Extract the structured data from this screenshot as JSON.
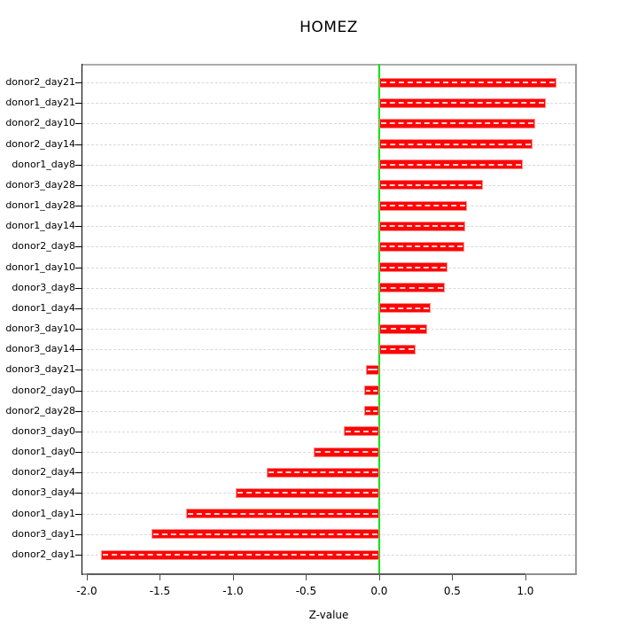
{
  "chart_data": {
    "type": "bar",
    "orientation": "horizontal",
    "title": "HOMEZ",
    "xlabel": "Z-value",
    "ylabel": "",
    "categories": [
      "donor2_day21",
      "donor1_day21",
      "donor2_day10",
      "donor2_day14",
      "donor1_day8",
      "donor3_day28",
      "donor1_day28",
      "donor1_day14",
      "donor2_day8",
      "donor1_day10",
      "donor3_day8",
      "donor1_day4",
      "donor3_day10",
      "donor3_day14",
      "donor3_day21",
      "donor2_day0",
      "donor2_day28",
      "donor3_day0",
      "donor1_day0",
      "donor2_day4",
      "donor3_day4",
      "donor1_day1",
      "donor3_day1",
      "donor2_day1"
    ],
    "values": [
      1.21,
      1.14,
      1.07,
      1.05,
      0.98,
      0.71,
      0.6,
      0.59,
      0.58,
      0.47,
      0.45,
      0.35,
      0.33,
      0.25,
      -0.09,
      -0.1,
      -0.1,
      -0.24,
      -0.45,
      -0.77,
      -0.98,
      -1.32,
      -1.56,
      -1.9
    ],
    "x_ticks": [
      -2.0,
      -1.5,
      -1.0,
      -0.5,
      0.0,
      0.5,
      1.0
    ],
    "x_tick_labels": [
      "-2.0",
      "-1.5",
      "-1.0",
      "-0.5",
      "0.0",
      "0.5",
      "1.0"
    ],
    "xlim": [
      -2.03,
      1.34
    ],
    "grid": true,
    "grid_style": "dashed",
    "bar_color": "#FF0000",
    "zero_line_color": "#00E400",
    "legend": "none"
  }
}
